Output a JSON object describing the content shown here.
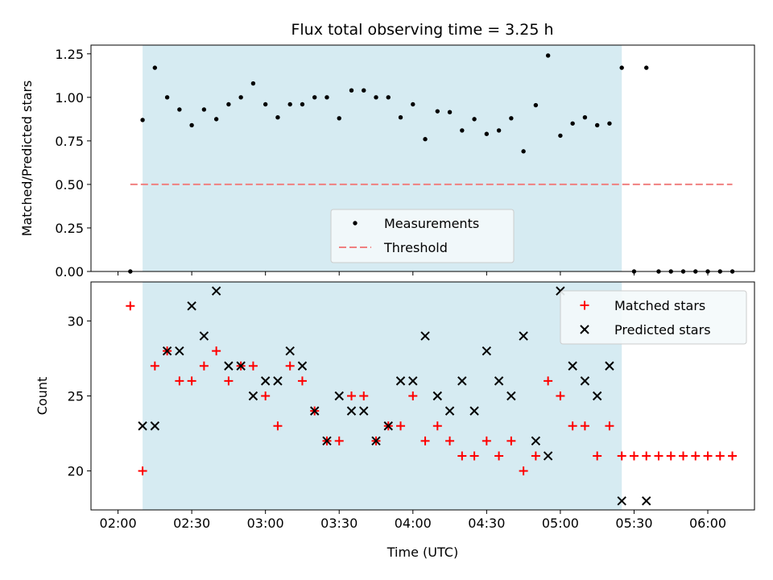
{
  "title": "Flux total observing time = 3.25 h",
  "colors": {
    "window": "#add8e6",
    "measurement": "#000000",
    "threshold": "#f08080",
    "matched": "#ff0000",
    "predicted": "#000000",
    "legend_bg": "#f4f9fb"
  },
  "chart_data": [
    {
      "type": "scatter",
      "panel": "top",
      "title": "Flux total observing time = 3.25 h",
      "xlabel": "",
      "ylabel": "Matched/Predicted stars",
      "ylim": [
        0,
        1.3
      ],
      "yticks": [
        "0.00",
        "0.25",
        "0.50",
        "0.75",
        "1.00",
        "1.25"
      ],
      "observing_window": [
        "02:10",
        "05:25"
      ],
      "threshold": {
        "name": "Threshold",
        "value": 0.5,
        "x_range": [
          "02:05",
          "06:10"
        ]
      },
      "legend": [
        "Measurements",
        "Threshold"
      ],
      "legend_position": "lower-center",
      "series": [
        {
          "name": "Measurements",
          "x": [
            "02:05",
            "02:10",
            "02:15",
            "02:20",
            "02:25",
            "02:30",
            "02:35",
            "02:40",
            "02:45",
            "02:50",
            "02:55",
            "03:00",
            "03:05",
            "03:10",
            "03:15",
            "03:20",
            "03:25",
            "03:30",
            "03:35",
            "03:40",
            "03:45",
            "03:50",
            "03:55",
            "04:00",
            "04:05",
            "04:10",
            "04:15",
            "04:20",
            "04:25",
            "04:30",
            "04:35",
            "04:40",
            "04:45",
            "04:50",
            "04:55",
            "05:00",
            "05:05",
            "05:10",
            "05:15",
            "05:20",
            "05:25",
            "05:30",
            "05:35",
            "05:40",
            "05:45",
            "05:50",
            "05:55",
            "06:00",
            "06:05",
            "06:10"
          ],
          "y": [
            0.0,
            0.87,
            1.17,
            1.0,
            0.93,
            0.84,
            0.93,
            0.875,
            0.96,
            1.0,
            1.08,
            0.96,
            0.885,
            0.96,
            0.96,
            1.0,
            1.0,
            0.88,
            1.04,
            1.04,
            1.0,
            1.0,
            0.885,
            0.96,
            0.76,
            0.92,
            0.915,
            0.81,
            0.875,
            0.79,
            0.81,
            0.88,
            0.69,
            0.955,
            1.24,
            0.78,
            0.85,
            0.885,
            0.84,
            0.85,
            1.17,
            0.0,
            1.17,
            0.0,
            0.0,
            0.0,
            0.0,
            0.0,
            0.0,
            0.0
          ]
        }
      ]
    },
    {
      "type": "scatter",
      "panel": "bottom",
      "xlabel": "Time (UTC)",
      "ylabel": "Count",
      "xticks": [
        "02:00",
        "02:30",
        "03:00",
        "03:30",
        "04:00",
        "04:30",
        "05:00",
        "05:30",
        "06:00"
      ],
      "yticks": [
        "20",
        "25",
        "30"
      ],
      "ylim": [
        17.4,
        32.6
      ],
      "observing_window": [
        "02:10",
        "05:25"
      ],
      "legend": [
        "Matched stars",
        "Predicted stars"
      ],
      "legend_position": "upper-right",
      "series": [
        {
          "name": "Matched stars",
          "marker": "+",
          "x": [
            "02:05",
            "02:10",
            "02:15",
            "02:20",
            "02:25",
            "02:30",
            "02:35",
            "02:40",
            "02:45",
            "02:50",
            "02:55",
            "03:00",
            "03:05",
            "03:10",
            "03:15",
            "03:20",
            "03:25",
            "03:30",
            "03:35",
            "03:40",
            "03:45",
            "03:50",
            "03:55",
            "04:00",
            "04:05",
            "04:10",
            "04:15",
            "04:20",
            "04:25",
            "04:30",
            "04:35",
            "04:40",
            "04:45",
            "04:50",
            "04:55",
            "05:00",
            "05:05",
            "05:10",
            "05:15",
            "05:20",
            "05:25",
            "05:30",
            "05:35",
            "05:40",
            "05:45",
            "05:50",
            "05:55",
            "06:00",
            "06:05",
            "06:10"
          ],
          "y": [
            31,
            20,
            27,
            28,
            26,
            26,
            27,
            28,
            26,
            27,
            27,
            25,
            23,
            27,
            26,
            24,
            22,
            22,
            25,
            25,
            22,
            23,
            23,
            25,
            22,
            23,
            22,
            21,
            21,
            22,
            21,
            22,
            20,
            21,
            26,
            25,
            23,
            23,
            21,
            23,
            21,
            21,
            21,
            21,
            21,
            21,
            21,
            21,
            21,
            21
          ]
        },
        {
          "name": "Predicted stars",
          "marker": "x",
          "x": [
            "02:10",
            "02:15",
            "02:20",
            "02:25",
            "02:30",
            "02:35",
            "02:40",
            "02:45",
            "02:50",
            "02:55",
            "03:00",
            "03:05",
            "03:10",
            "03:15",
            "03:20",
            "03:25",
            "03:30",
            "03:35",
            "03:40",
            "03:45",
            "03:50",
            "03:55",
            "04:00",
            "04:05",
            "04:10",
            "04:15",
            "04:20",
            "04:25",
            "04:30",
            "04:35",
            "04:40",
            "04:45",
            "04:50",
            "04:55",
            "05:00",
            "05:05",
            "05:10",
            "05:15",
            "05:20",
            "05:25",
            "05:35"
          ],
          "y": [
            23,
            23,
            28,
            28,
            31,
            29,
            32,
            27,
            27,
            25,
            26,
            26,
            28,
            27,
            24,
            22,
            25,
            24,
            24,
            22,
            23,
            26,
            26,
            29,
            25,
            24,
            26,
            24,
            28,
            26,
            25,
            29,
            22,
            21,
            32,
            27,
            26,
            25,
            27,
            18,
            18
          ]
        }
      ]
    }
  ]
}
